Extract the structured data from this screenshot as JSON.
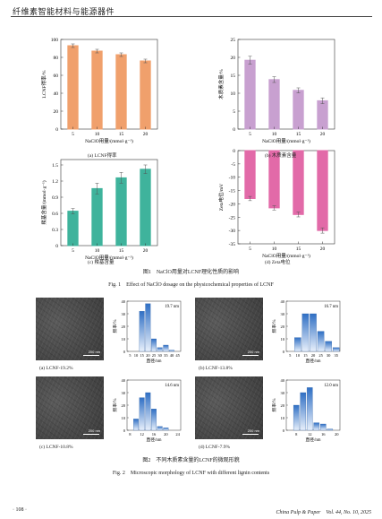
{
  "header": {
    "title": "纤维素智能材料与能源器件"
  },
  "fig1": {
    "caption_cn": "图1　NaClO用量对LCNF理化性质的影响",
    "caption_en": "Fig. 1　Effect of NaClO dosage on the physicochemical properties of LCNF"
  },
  "fig2": {
    "caption_cn": "图2　不同木质素含量的LCNF的微观形貌",
    "caption_en": "Fig. 2　Microscopic morphology of LCNF with different lignin contents"
  },
  "footer": {
    "page": "· 108 ·",
    "journal": "China Pulp & Paper　Vol. 44, No. 10, 2025"
  },
  "chart_data": [
    {
      "type": "bar",
      "id": "a",
      "categories": [
        "5",
        "10",
        "15",
        "20"
      ],
      "values": [
        93,
        87,
        83,
        76
      ],
      "errors": [
        2,
        2,
        2,
        2
      ],
      "ylabel": "LCNF得率/%",
      "xlabel": "NaClO用量/(mmol·g⁻¹)",
      "caption": "(a) LCNF得率",
      "ylim": [
        0,
        100
      ],
      "yticks": [
        "0",
        "20",
        "40",
        "60",
        "80",
        "100"
      ],
      "color": "#f0a06c"
    },
    {
      "type": "bar",
      "id": "b",
      "categories": [
        "5",
        "10",
        "15",
        "20"
      ],
      "values": [
        19.2,
        13.8,
        10.8,
        7.9
      ],
      "errors": [
        1.1,
        0.8,
        0.7,
        0.8
      ],
      "ylabel": "木质素含量/%",
      "xlabel": "NaClO用量/(mmol·g⁻¹)",
      "caption": "(b) 木质素含量",
      "ylim": [
        0,
        25
      ],
      "yticks": [
        "0",
        "5",
        "10",
        "15",
        "20",
        "25"
      ],
      "color": "#c8a0d0"
    },
    {
      "type": "bar",
      "id": "c",
      "categories": [
        "5",
        "10",
        "15",
        "20"
      ],
      "values": [
        0.64,
        1.06,
        1.26,
        1.42
      ],
      "errors": [
        0.05,
        0.1,
        0.1,
        0.08
      ],
      "ylabel": "羧基含量/(mmol·g⁻¹)",
      "xlabel": "NaClO用量/(mmol·g⁻¹)",
      "caption": "(c) 羧基含量",
      "ylim": [
        0,
        1.6
      ],
      "yticks": [
        "0",
        "0.3",
        "0.6",
        "0.9",
        "1.2",
        "1.5"
      ],
      "color": "#3fb39c"
    },
    {
      "type": "bar",
      "id": "d",
      "categories": [
        "5",
        "10",
        "15",
        "20"
      ],
      "values": [
        -18,
        -21.5,
        -24,
        -30
      ],
      "errors": [
        0.8,
        0.8,
        0.9,
        1.0
      ],
      "ylabel": "Zeta电位/mV",
      "xlabel": "NaClO用量/(mmol·g⁻¹)",
      "caption": "(d) Zeta电位",
      "ylim": [
        -35,
        0
      ],
      "yticks": [
        "0",
        "-5",
        "-10",
        "-15",
        "-20",
        "-25",
        "-30",
        "-35"
      ],
      "color": "#e26aa8"
    },
    {
      "type": "bar",
      "id": "h1",
      "label": "19.7 nm",
      "caption": "(a) LCNF-19.2%",
      "ylabel": "频率/%",
      "xlabel": "直径/nm",
      "categories": [
        "5",
        "10",
        "15",
        "20",
        "25",
        "30",
        "35",
        "40",
        "45"
      ],
      "values": [
        0,
        0,
        32,
        38,
        10,
        3,
        5,
        1,
        0
      ],
      "ylim": [
        0,
        40
      ],
      "yticks": [
        "0",
        "10",
        "20",
        "30",
        "40"
      ],
      "xticks": [
        "5",
        "10",
        "15",
        "20",
        "25",
        "30",
        "35",
        "40",
        "45"
      ],
      "color": "#3a78c8"
    },
    {
      "type": "bar",
      "id": "h2",
      "label": "16.7 nm",
      "caption": "(b) LCNF-13.8%",
      "ylabel": "频率/%",
      "xlabel": "直径/nm",
      "categories": [
        "5",
        "10",
        "15",
        "20",
        "25",
        "30",
        "35"
      ],
      "values": [
        0,
        11,
        30,
        30,
        16,
        8,
        3
      ],
      "ylim": [
        0,
        40
      ],
      "yticks": [
        "0",
        "10",
        "20",
        "30",
        "40"
      ],
      "xticks": [
        "5",
        "10",
        "15",
        "20",
        "25",
        "30",
        "35"
      ],
      "color": "#3a78c8"
    },
    {
      "type": "bar",
      "id": "h3",
      "label": "14.6 nm",
      "caption": "(c) LCNF-10.8%",
      "ylabel": "频率/%",
      "xlabel": "直径/nm",
      "categories": [
        "8",
        "10",
        "12",
        "14",
        "16",
        "18",
        "20",
        "22",
        "24"
      ],
      "values": [
        0,
        9,
        26,
        30,
        17,
        3,
        2,
        0,
        0
      ],
      "ylim": [
        0,
        40
      ],
      "yticks": [
        "0",
        "10",
        "20",
        "30",
        "40"
      ],
      "xticks": [
        "8",
        "12",
        "16",
        "20",
        "24"
      ],
      "color": "#3a78c8"
    },
    {
      "type": "bar",
      "id": "h4",
      "label": "12.0 nm",
      "caption": "(d) LCNF-7.9%",
      "ylabel": "频率/%",
      "xlabel": "直径/nm",
      "categories": [
        "6",
        "8",
        "10",
        "12",
        "14",
        "16",
        "18",
        "20"
      ],
      "values": [
        0,
        20,
        30,
        34,
        6,
        5,
        1,
        0
      ],
      "ylim": [
        0,
        40
      ],
      "yticks": [
        "0",
        "10",
        "20",
        "30",
        "40"
      ],
      "xticks": [
        "8",
        "12",
        "16",
        "20"
      ],
      "color": "#3a78c8"
    }
  ],
  "sem": {
    "scale": "200 nm"
  }
}
